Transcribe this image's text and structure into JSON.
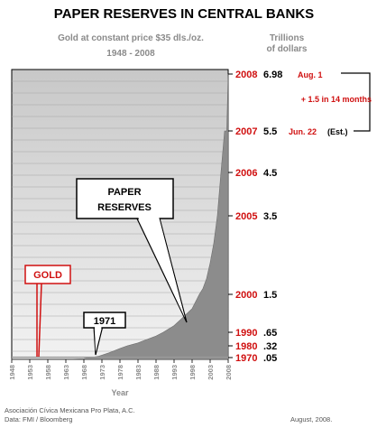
{
  "chart_data": {
    "type": "area",
    "title": "PAPER RESERVES IN CENTRAL BANKS",
    "subtitle": "Gold at constant price $35 dls./oz.",
    "period": "1948 - 2008",
    "units": "Trillions\nof dollars",
    "xlabel": "Year",
    "xlim": [
      1948,
      2008
    ],
    "x_ticks": [
      "1948",
      "1953",
      "1958",
      "1963",
      "1968",
      "1973",
      "1978",
      "1983",
      "1988",
      "1993",
      "1998",
      "2003",
      "2008"
    ],
    "series": [
      {
        "name": "PAPER RESERVES",
        "color": "#8c8c8c",
        "x": [
          1948,
          1955,
          1960,
          1965,
          1968,
          1970,
          1972,
          1975,
          1978,
          1980,
          1983,
          1985,
          1988,
          1990,
          1993,
          1995,
          1998,
          2000,
          2001,
          2002,
          2003,
          2004,
          2005,
          2006,
          2007,
          2007.6,
          2008.6
        ],
        "y": [
          0.01,
          0.01,
          0.01,
          0.01,
          0.02,
          0.05,
          0.08,
          0.16,
          0.26,
          0.32,
          0.39,
          0.46,
          0.56,
          0.65,
          0.8,
          0.95,
          1.18,
          1.5,
          1.65,
          1.9,
          2.3,
          2.8,
          3.5,
          4.5,
          5.5,
          5.5,
          6.98
        ]
      },
      {
        "name": "GOLD",
        "color": "#b0b0b0",
        "x": [
          1948,
          2008.6
        ],
        "y": [
          0.035,
          0.035
        ]
      }
    ],
    "value_labels": [
      {
        "year": "2008",
        "value": "6.98",
        "date": "Aug. 1",
        "note": ""
      },
      {
        "year": "2007",
        "value": "5.5",
        "date": "Jun. 22",
        "note": "(Est.)"
      },
      {
        "year": "2006",
        "value": "4.5",
        "date": "",
        "note": ""
      },
      {
        "year": "2005",
        "value": "3.5",
        "date": "",
        "note": ""
      },
      {
        "year": "2000",
        "value": "1.5",
        "date": "",
        "note": ""
      },
      {
        "year": "1990",
        "value": ".65",
        "date": "",
        "note": ""
      },
      {
        "year": "1980",
        "value": ".32",
        "date": "",
        "note": ""
      },
      {
        "year": "1970",
        "value": ".05",
        "date": "",
        "note": ""
      }
    ],
    "growth_note": "+ 1.5 in 14 months",
    "annotations": {
      "paper_line1": "PAPER",
      "paper_line2": "RESERVES",
      "year_1971": "1971",
      "gold": "GOLD"
    },
    "colors": {
      "accent": "#d01010",
      "plot_background": "#cfcfcf",
      "area_fill": "#8c8c8c"
    }
  },
  "footer": {
    "source_line1": "Asociación Cívica Mexicana Pro Plata, A.C.",
    "source_line2": "Data:  FMI / Bloomberg",
    "date": "August, 2008."
  }
}
